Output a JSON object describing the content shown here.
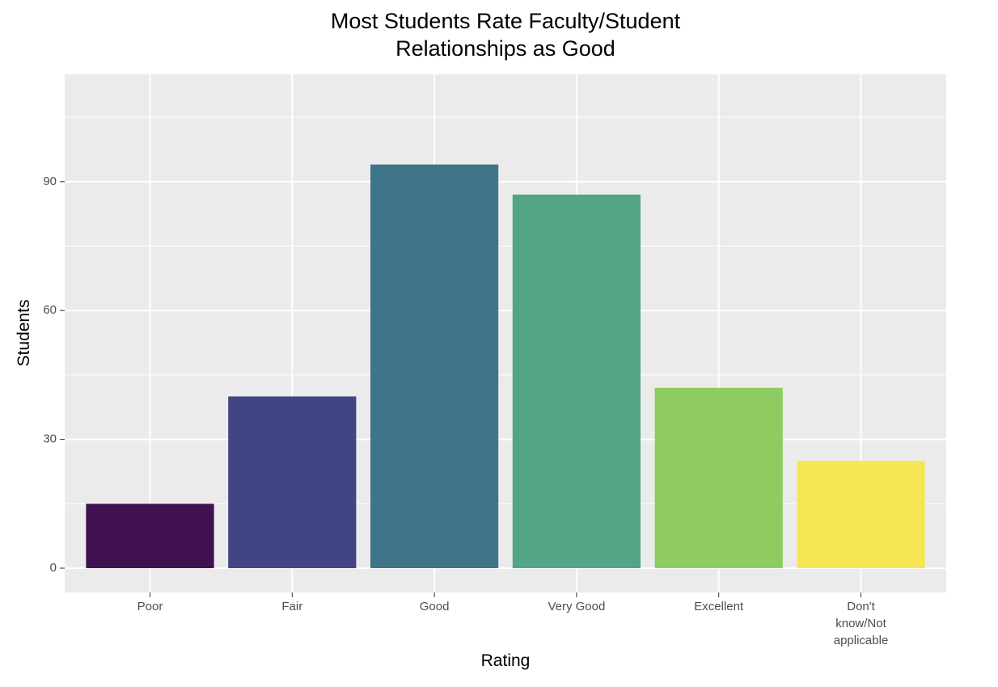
{
  "chart_data": {
    "type": "bar",
    "title": "Most Students Rate Faculty/Student\nRelationships as Good",
    "x_label": "Rating",
    "y_label": "Students",
    "categories": [
      "Poor",
      "Fair",
      "Good",
      "Very Good",
      "Excellent",
      "Don't\nknow/Not\napplicable"
    ],
    "values": [
      15,
      40,
      94,
      87,
      42,
      25
    ],
    "colors": [
      "#41104f",
      "#424583",
      "#3e7589",
      "#52a585",
      "#8ecc62",
      "#f6e655"
    ],
    "ylim": [
      -5.65,
      115
    ],
    "yticks": [
      0,
      30,
      60,
      90
    ],
    "minor_yticks": [
      15,
      45,
      75,
      105
    ],
    "grid": true
  }
}
